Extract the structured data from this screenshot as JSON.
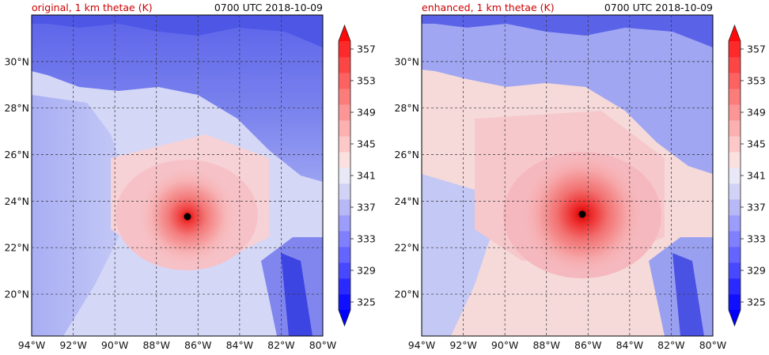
{
  "panels": [
    {
      "title_left": "original, 1 km thetae (K)",
      "title_right": "0700 UTC 2018-10-09",
      "storm_center": {
        "lon": -86.5,
        "lat": 23.35
      },
      "variant": "original"
    },
    {
      "title_left": "enhanced, 1 km thetae (K)",
      "title_right": "0700 UTC 2018-10-09",
      "storm_center": {
        "lon": -86.1,
        "lat": 23.45
      },
      "variant": "enhanced"
    }
  ],
  "map": {
    "lon_range": [
      -94,
      -80
    ],
    "lat_range": [
      18.2,
      32.0
    ],
    "lon_ticks": [
      "94°W",
      "92°W",
      "90°W",
      "88°W",
      "86°W",
      "84°W",
      "82°W",
      "80°W"
    ],
    "lat_ticks": [
      "20°N",
      "22°N",
      "24°N",
      "26°N",
      "28°N",
      "30°N"
    ]
  },
  "colorbar": {
    "tick_labels": [
      "325",
      "329",
      "333",
      "337",
      "341",
      "345",
      "349",
      "353",
      "357"
    ],
    "levels": [
      325,
      327,
      329,
      331,
      333,
      335,
      337,
      339,
      341,
      343,
      345,
      347,
      349,
      351,
      353,
      355,
      357,
      359
    ],
    "colors": [
      "#1010ff",
      "#2a2aff",
      "#4848ff",
      "#6464ff",
      "#8080ff",
      "#9c9cfa",
      "#b8b8f6",
      "#d2d2f6",
      "#e8e8f6",
      "#fbe0e0",
      "#fcc8c8",
      "#fcb0b0",
      "#fc9696",
      "#fc7c7c",
      "#fc6262",
      "#fc4646",
      "#fc2a2a"
    ],
    "over_color": "#ff0a0a",
    "under_color": "#0000ff"
  },
  "colors": {
    "title_left": "#cc0000",
    "text": "#111111",
    "land_cold": "#6a70ec",
    "land_cool": "#9aa2f2",
    "gulf_warm": "#f6c2c8",
    "gulf_hot": "#f48e92",
    "core": "#ee3a3a"
  }
}
